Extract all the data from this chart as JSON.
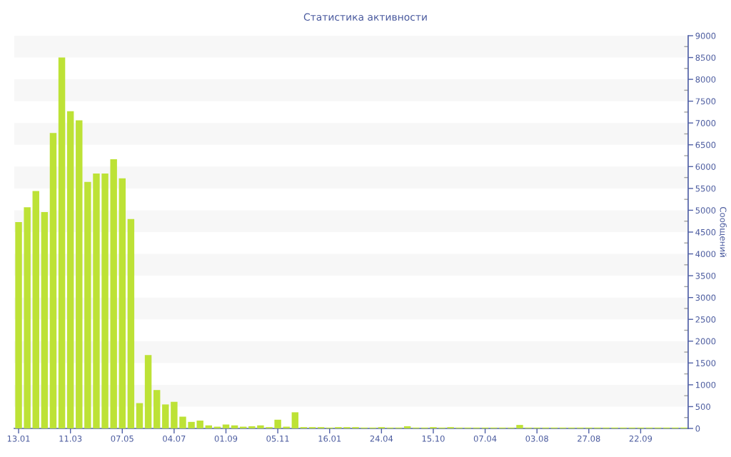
{
  "chart_data": {
    "type": "bar",
    "title": "Статистика активности",
    "ylabel": "Сообщений",
    "categories": [
      "13.01",
      null,
      null,
      null,
      null,
      null,
      "11.03",
      null,
      null,
      null,
      null,
      null,
      "07.05",
      null,
      null,
      null,
      null,
      null,
      "04.07",
      null,
      null,
      null,
      null,
      null,
      "01.09",
      null,
      null,
      null,
      null,
      null,
      "05.11",
      null,
      null,
      null,
      null,
      null,
      "16.01",
      null,
      null,
      null,
      null,
      null,
      "24.04",
      null,
      null,
      null,
      null,
      null,
      "15.10",
      null,
      null,
      null,
      null,
      null,
      "07.04",
      null,
      null,
      null,
      null,
      null,
      "03.08",
      null,
      null,
      null,
      null,
      null,
      "27.08",
      null,
      null,
      null,
      null,
      null,
      "22.09",
      null,
      null,
      null,
      null,
      null
    ],
    "values": [
      4730,
      5070,
      5440,
      4960,
      6770,
      8500,
      7270,
      7060,
      5650,
      5840,
      5840,
      6170,
      5730,
      4800,
      580,
      1680,
      880,
      550,
      610,
      270,
      150,
      180,
      70,
      40,
      90,
      70,
      40,
      50,
      70,
      30,
      200,
      40,
      370,
      30,
      30,
      30,
      20,
      30,
      30,
      30,
      20,
      20,
      30,
      20,
      20,
      50,
      20,
      20,
      30,
      20,
      30,
      20,
      20,
      20,
      20,
      20,
      20,
      20,
      80,
      20,
      20,
      20,
      20,
      20,
      20,
      20,
      20,
      20,
      20,
      20,
      20,
      20,
      20,
      20,
      20,
      20,
      20,
      20
    ],
    "color": "#bde236",
    "ylim": [
      0,
      9000
    ],
    "yticks": [
      0,
      500,
      1000,
      1500,
      2000,
      2500,
      3000,
      3500,
      4000,
      4500,
      5000,
      5500,
      6000,
      6500,
      7000,
      7500,
      8000,
      8500,
      9000
    ],
    "bands": [
      {
        "axis": "y",
        "from": 500,
        "to": 1000,
        "color": "#f7f7f7"
      },
      {
        "axis": "y",
        "from": 1500,
        "to": 2000,
        "color": "#f7f7f7"
      },
      {
        "axis": "y",
        "from": 2500,
        "to": 3000,
        "color": "#f7f7f7"
      },
      {
        "axis": "y",
        "from": 3500,
        "to": 4000,
        "color": "#f7f7f7"
      },
      {
        "axis": "y",
        "from": 4500,
        "to": 5000,
        "color": "#f7f7f7"
      },
      {
        "axis": "y",
        "from": 5500,
        "to": 6000,
        "color": "#f7f7f7"
      },
      {
        "axis": "y",
        "from": 6500,
        "to": 7000,
        "color": "#f7f7f7"
      },
      {
        "axis": "y",
        "from": 7500,
        "to": 8000,
        "color": "#f7f7f7"
      },
      {
        "axis": "y",
        "from": 8500,
        "to": 9000,
        "color": "#f7f7f7"
      }
    ]
  }
}
